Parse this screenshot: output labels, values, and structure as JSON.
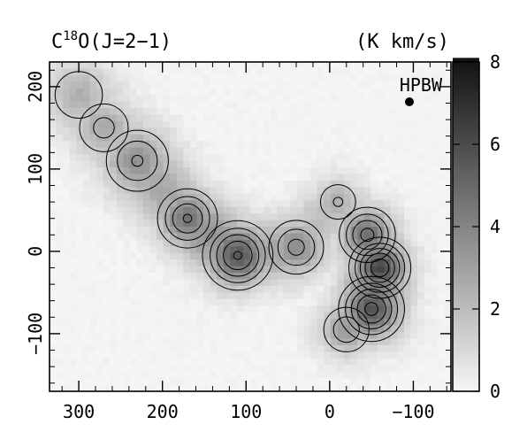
{
  "chart_data": {
    "type": "heatmap",
    "title": "C¹⁸O(J=2−1)",
    "title_main": "C",
    "title_sup": "18",
    "title_rest": "O(J=2−1)",
    "unit_label": "(K km/s)",
    "beam_label": "HPBW",
    "x_ticks": [
      300,
      200,
      100,
      0,
      -100
    ],
    "x_tick_labels": [
      "300",
      "200",
      "100",
      "0",
      "−100"
    ],
    "xlim": [
      335,
      -145
    ],
    "y_ticks": [
      200,
      100,
      0,
      -100
    ],
    "y_tick_labels": [
      "200",
      "100",
      "0",
      "−100"
    ],
    "ylim": [
      -170,
      230
    ],
    "colorbar": {
      "min": 0,
      "max": 8,
      "ticks": [
        0,
        2,
        4,
        6,
        8
      ],
      "tick_labels": [
        "0",
        "2",
        "4",
        "6",
        "8"
      ]
    },
    "contour_levels": [
      1.5,
      2.5,
      3.5,
      4.5,
      5.5,
      6.5
    ],
    "emission_ridge": [
      {
        "x": 300,
        "y": 190,
        "peak": 2.5,
        "width": 28
      },
      {
        "x": 270,
        "y": 150,
        "peak": 2.8,
        "width": 26
      },
      {
        "x": 230,
        "y": 110,
        "peak": 3.6,
        "width": 28
      },
      {
        "x": 170,
        "y": 40,
        "peak": 4.6,
        "width": 24
      },
      {
        "x": 110,
        "y": -5,
        "peak": 5.6,
        "width": 26
      },
      {
        "x": 40,
        "y": 5,
        "peak": 3.8,
        "width": 24
      },
      {
        "x": -10,
        "y": 60,
        "peak": 2.6,
        "width": 20
      },
      {
        "x": -45,
        "y": 20,
        "peak": 4.8,
        "width": 22
      },
      {
        "x": -60,
        "y": -20,
        "peak": 6.2,
        "width": 22
      },
      {
        "x": -50,
        "y": -70,
        "peak": 5.8,
        "width": 24
      },
      {
        "x": -20,
        "y": -95,
        "peak": 3.2,
        "width": 22
      }
    ]
  }
}
